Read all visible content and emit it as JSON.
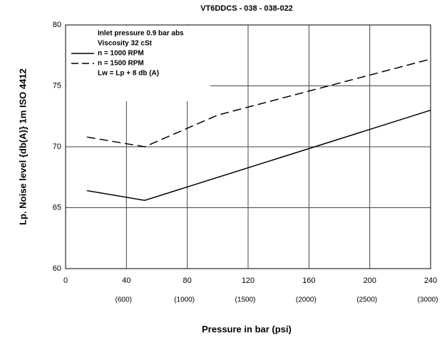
{
  "chart_data": {
    "type": "line",
    "title": "VT6DDCS - 038 - 038-022",
    "x_label": "Pressure in bar (psi)",
    "y_label": "Lp. Noise level {db(A)} 1m ISO 4412",
    "xlim": [
      0,
      240
    ],
    "xticks": [
      0,
      40,
      80,
      120,
      160,
      200,
      240
    ],
    "x2_tick_labels": [
      "(600)",
      "(1000)",
      "(1500)",
      "(2000)",
      "(2500)",
      "(3000)"
    ],
    "ylim": [
      60,
      80
    ],
    "yticks": [
      60,
      65,
      70,
      75,
      80
    ],
    "grid": true,
    "annotations": [
      "Inlet pressure  0.9 bar abs",
      "Viscosity  32 cSt",
      "Lw = Lp + 8 db (A)"
    ],
    "series": [
      {
        "name": "n  = 1000 RPM",
        "color": "#000000",
        "style": "solid",
        "x": [
          14,
          52,
          240
        ],
        "values": [
          66.4,
          65.6,
          73
        ]
      },
      {
        "name": "n  = 1500 RPM",
        "color": "#000000",
        "style": "dashed",
        "x": [
          14,
          52,
          100,
          240
        ],
        "values": [
          70.8,
          70,
          72.6,
          77.2
        ]
      }
    ]
  }
}
